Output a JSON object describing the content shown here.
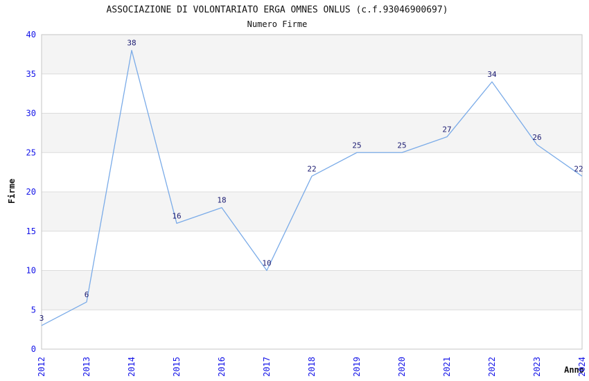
{
  "chart_data": {
    "type": "line",
    "title": "ASSOCIAZIONE DI VOLONTARIATO ERGA OMNES ONLUS (c.f.93046900697)",
    "subtitle": "Numero Firme",
    "xlabel": "Anno",
    "ylabel": "Firme",
    "x": [
      "2012",
      "2013",
      "2014",
      "2015",
      "2016",
      "2017",
      "2018",
      "2019",
      "2020",
      "2021",
      "2022",
      "2023",
      "2024"
    ],
    "values": [
      3,
      6,
      38,
      16,
      18,
      10,
      22,
      25,
      25,
      27,
      34,
      26,
      22
    ],
    "ylim": [
      0,
      40
    ],
    "yticks": [
      0,
      5,
      10,
      15,
      20,
      25,
      30,
      35,
      40
    ],
    "legend": "none",
    "grid": "horizontal-gridlines-with-alternating-bands",
    "colors": {
      "line": "#7aabe8",
      "tick_labels": "#1414e8",
      "data_labels": "#191970",
      "band": "#f4f4f4",
      "gridline": "#dcdcdc",
      "border": "#c6c6c6",
      "title": "#111111",
      "axis_labels": "#111111",
      "background": "#ffffff"
    }
  }
}
